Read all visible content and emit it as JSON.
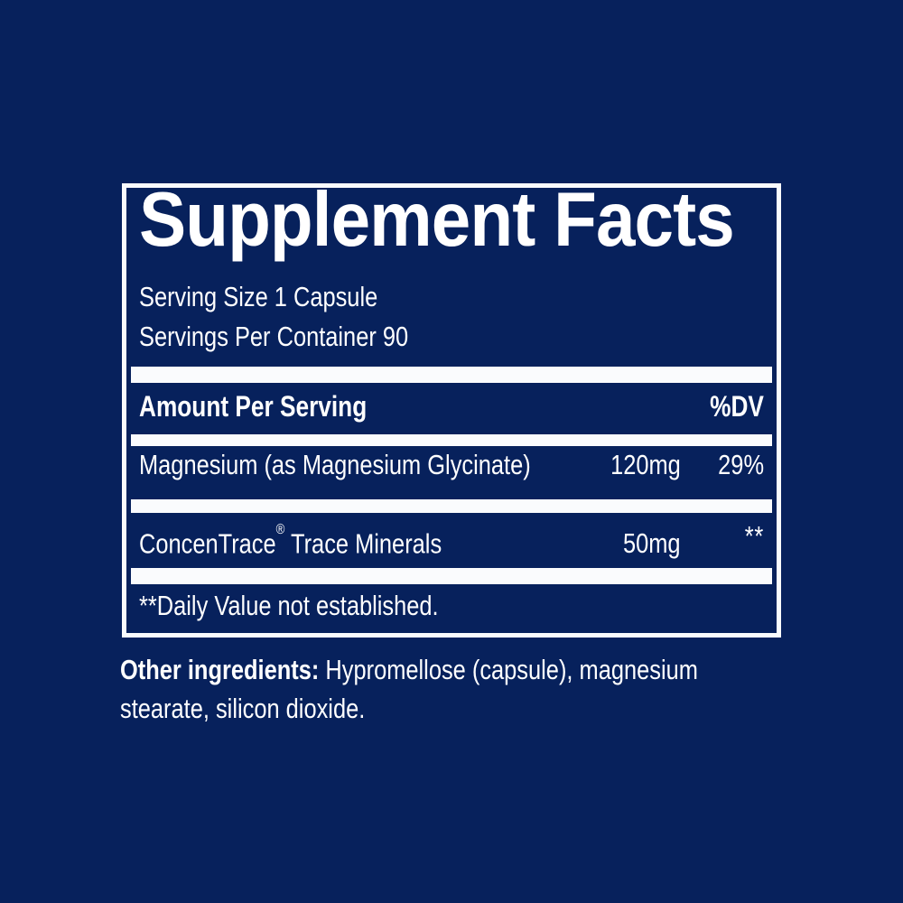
{
  "colors": {
    "background": "#07215c",
    "box_border": "#ffffff",
    "separator_bars": "#ffffff",
    "text": "#ffffff"
  },
  "facts_panel": {
    "title": "Supplement Facts",
    "serving_size": "Serving Size 1 Capsule",
    "servings_per_container": "Servings Per Container 90",
    "header": {
      "amount_label": "Amount Per Serving",
      "dv_label": "%DV"
    },
    "rows": [
      {
        "name": "Magnesium (as Magnesium Glycinate)",
        "amount": "120mg",
        "dv": "29%"
      },
      {
        "name_brand": "ConcenTrace",
        "reg_mark": "®",
        "name_rest": " Trace Minerals",
        "amount": "50mg",
        "dv": "**"
      }
    ],
    "footnote": "**Daily Value not established."
  },
  "other_ingredients": {
    "label": "Other ingredients:",
    "text": " Hypromellose (capsule), magnesium stearate, silicon dioxide."
  }
}
